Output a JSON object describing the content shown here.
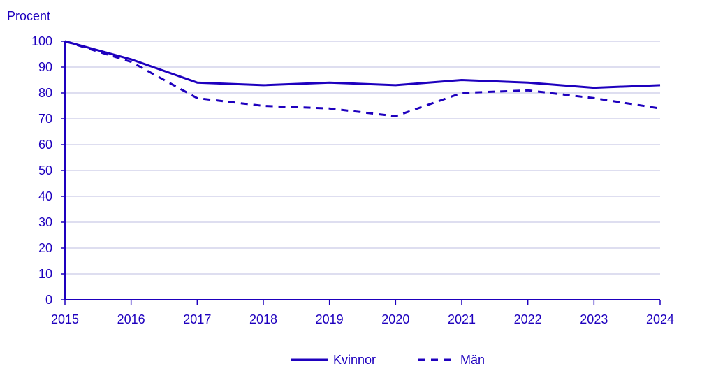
{
  "chart_data": {
    "type": "line",
    "title": "",
    "ylabel": "Procent",
    "xlabel": "",
    "x": [
      2015,
      2016,
      2017,
      2018,
      2019,
      2020,
      2021,
      2022,
      2023,
      2024
    ],
    "x_tick_labels": [
      "2015",
      "2016",
      "2017",
      "2018",
      "2019",
      "2020",
      "2021",
      "2022",
      "2023",
      "2024"
    ],
    "ylim": [
      0,
      100
    ],
    "y_ticks": [
      0,
      10,
      20,
      30,
      40,
      50,
      60,
      70,
      80,
      90,
      100
    ],
    "grid": true,
    "legend_position": "bottom-center",
    "series": [
      {
        "name": "Kvinnor",
        "style": "solid",
        "values": [
          100,
          93,
          84,
          83,
          84,
          83,
          85,
          84,
          82,
          83
        ]
      },
      {
        "name": "Män",
        "style": "dashed",
        "values": [
          100,
          92,
          78,
          75,
          74,
          71,
          80,
          81,
          78,
          74
        ]
      }
    ],
    "colors": {
      "series": "#1e00be",
      "text": "#1e00be",
      "grid": "#c9c9e8",
      "axis": "#1e00be"
    }
  }
}
